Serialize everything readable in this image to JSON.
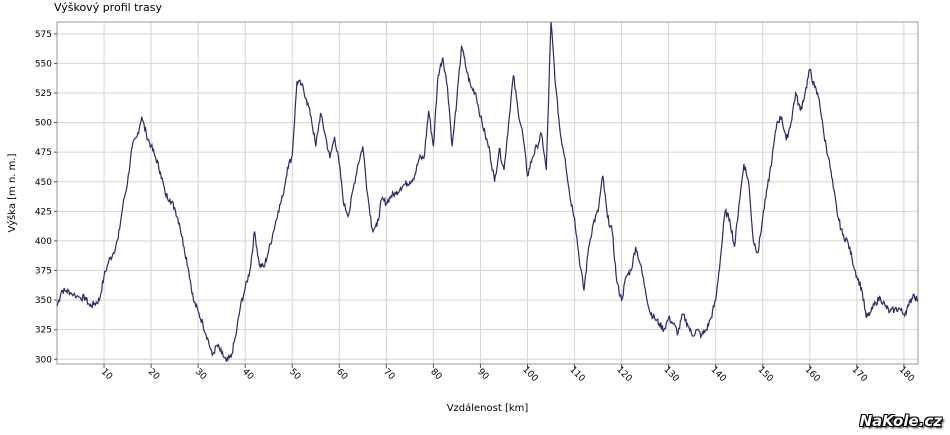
{
  "chart_data": {
    "type": "line",
    "title": "Výškový profil trasy",
    "xlabel": "Vzdálenost [km]",
    "ylabel": "Výška [m n. m.]",
    "xlim": [
      0,
      183
    ],
    "ylim": [
      296,
      585
    ],
    "x_ticks": [
      10,
      20,
      30,
      40,
      50,
      60,
      70,
      80,
      90,
      100,
      110,
      120,
      130,
      140,
      150,
      160,
      170,
      180
    ],
    "y_ticks": [
      300,
      325,
      350,
      375,
      400,
      425,
      450,
      475,
      500,
      525,
      550,
      575
    ],
    "grid": true,
    "line_color": "#2b2b66",
    "series": [
      {
        "x": [
          0,
          1,
          2,
          3,
          5,
          6,
          7,
          8,
          9,
          10,
          11,
          12,
          13,
          14,
          15,
          16,
          17,
          18,
          19,
          20,
          21,
          22,
          23,
          24,
          25,
          26,
          27,
          28,
          29,
          30,
          31,
          32,
          33,
          34,
          35,
          36,
          37,
          38,
          39,
          40,
          41,
          42,
          43,
          44,
          45,
          46,
          47,
          48,
          49,
          50,
          51,
          52,
          53,
          54,
          55,
          56,
          57,
          58,
          59,
          60,
          61,
          62,
          63,
          64,
          65,
          66,
          67,
          68,
          69,
          70,
          71,
          72,
          73,
          74,
          75,
          76,
          77,
          78,
          79,
          80,
          81,
          82,
          83,
          84,
          85,
          86,
          87,
          88,
          89,
          90,
          91,
          92,
          93,
          94,
          95,
          96,
          97,
          98,
          99,
          100,
          101,
          102,
          103,
          104,
          105,
          106,
          107,
          108,
          109,
          110,
          111,
          112,
          113,
          114,
          115,
          116,
          117,
          118,
          119,
          120,
          121,
          122,
          123,
          124,
          125,
          126,
          127,
          128,
          129,
          130,
          131,
          132,
          133,
          134,
          135,
          136,
          137,
          138,
          139,
          140,
          141,
          142,
          143,
          144,
          145,
          146,
          147,
          148,
          149,
          150,
          151,
          152,
          153,
          154,
          155,
          156,
          157,
          158,
          159,
          160,
          161,
          162,
          163,
          164,
          165,
          166,
          167,
          168,
          169,
          170,
          171,
          172,
          173,
          174,
          175,
          176,
          177,
          178,
          179,
          180,
          181,
          182,
          183
        ],
        "y": [
          345,
          358,
          358,
          356,
          352,
          352,
          345,
          347,
          350,
          370,
          383,
          390,
          402,
          430,
          450,
          480,
          488,
          505,
          490,
          480,
          470,
          458,
          440,
          435,
          428,
          415,
          395,
          375,
          350,
          340,
          330,
          318,
          303,
          312,
          305,
          298,
          302,
          320,
          345,
          360,
          375,
          408,
          380,
          378,
          392,
          408,
          425,
          438,
          462,
          472,
          535,
          532,
          520,
          505,
          480,
          508,
          490,
          470,
          488,
          465,
          430,
          422,
          445,
          465,
          480,
          440,
          410,
          412,
          435,
          432,
          438,
          440,
          445,
          448,
          450,
          455,
          470,
          470,
          510,
          480,
          540,
          555,
          530,
          480,
          520,
          565,
          545,
          530,
          525,
          505,
          490,
          475,
          450,
          478,
          460,
          500,
          540,
          510,
          490,
          455,
          470,
          480,
          490,
          460,
          585,
          530,
          490,
          470,
          438,
          420,
          385,
          358,
          395,
          415,
          425,
          455,
          420,
          408,
          365,
          350,
          370,
          375,
          395,
          380,
          360,
          340,
          335,
          330,
          325,
          335,
          330,
          322,
          338,
          330,
          320,
          325,
          320,
          325,
          335,
          350,
          385,
          425,
          418,
          395,
          432,
          465,
          450,
          400,
          390,
          420,
          445,
          470,
          500,
          505,
          485,
          500,
          525,
          510,
          525,
          545,
          530,
          520,
          490,
          470,
          445,
          420,
          405,
          400,
          385,
          370,
          360,
          335,
          340,
          348,
          352,
          345,
          340,
          342,
          343,
          338,
          345,
          355,
          350
        ]
      }
    ]
  },
  "watermark": "NaKole.cz"
}
